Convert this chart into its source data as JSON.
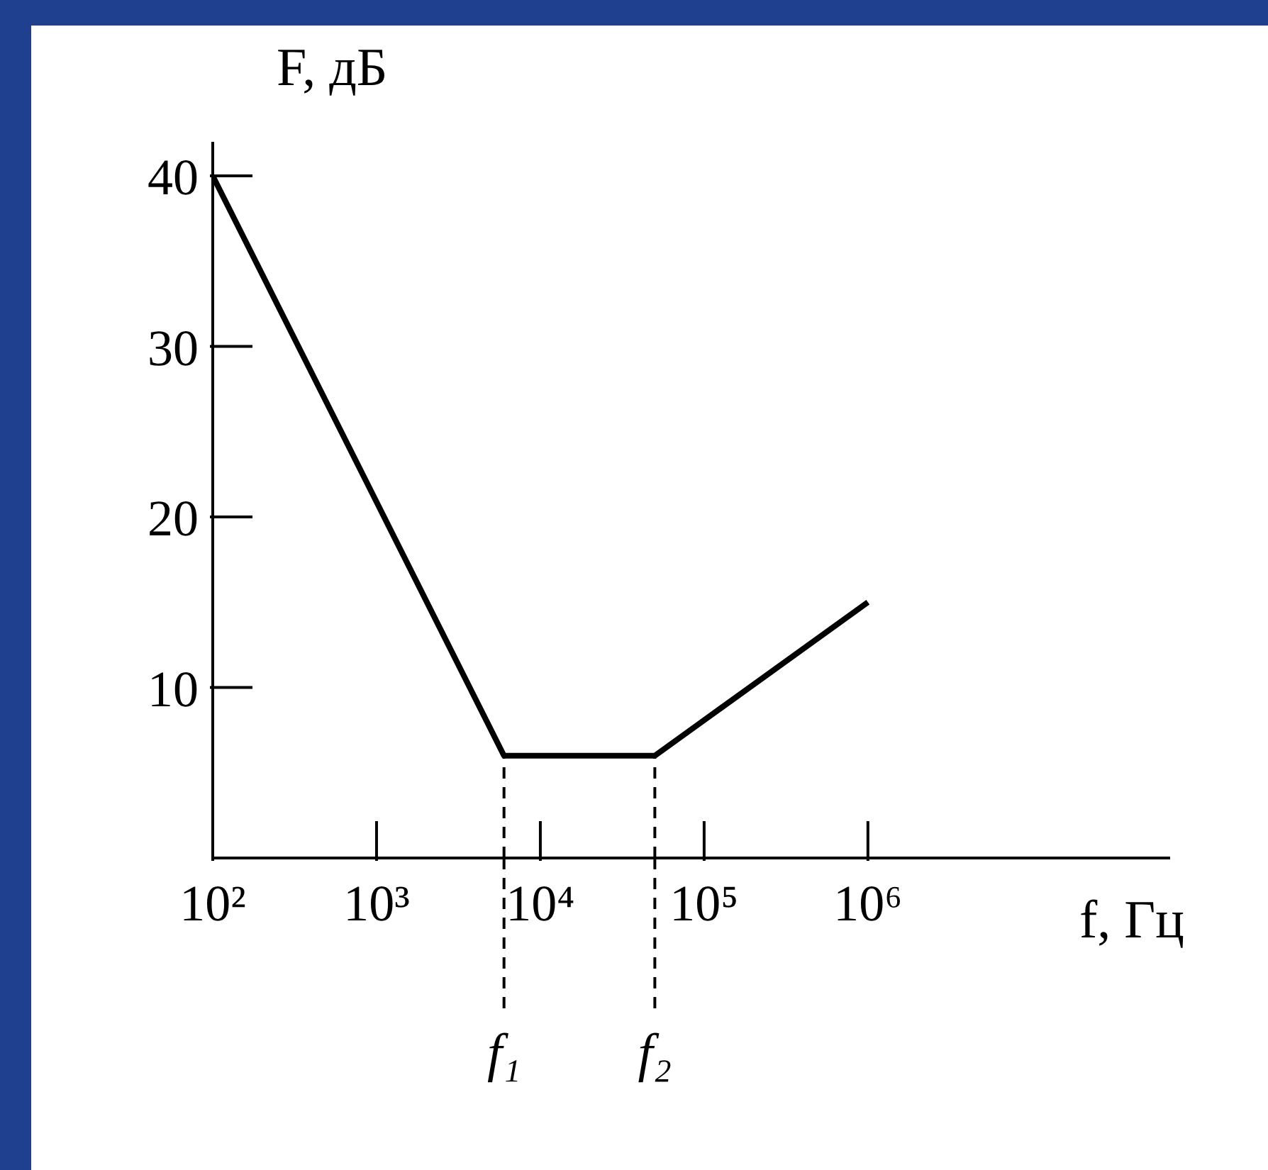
{
  "chart_data": {
    "type": "line",
    "xlabel": "f, Гц",
    "ylabel": "F, дБ",
    "log": "x",
    "x": [
      100,
      6000,
      50000,
      1000000
    ],
    "series": [
      {
        "color": "#000000",
        "values": [
          40,
          6,
          6,
          15
        ]
      }
    ],
    "xlim": [
      100,
      70000000
    ],
    "xticks": [
      {
        "value": 100,
        "label": "10²"
      },
      {
        "value": 1000,
        "label": "10³"
      },
      {
        "value": 10000,
        "label": "10⁴"
      },
      {
        "value": 100000,
        "label": "10⁵"
      },
      {
        "value": 1000000,
        "label": "10⁶"
      }
    ],
    "ylim": [
      0,
      42
    ],
    "yticks": [
      10,
      20,
      30,
      40
    ],
    "ref_lines": [
      {
        "axis": "x",
        "value": 6000,
        "label": "f₁",
        "line_style": "dashed"
      },
      {
        "axis": "x",
        "value": 50000,
        "label": "f₂",
        "line_style": "dashed"
      }
    ],
    "grid": false,
    "marker": "none",
    "line_style": "solid"
  }
}
